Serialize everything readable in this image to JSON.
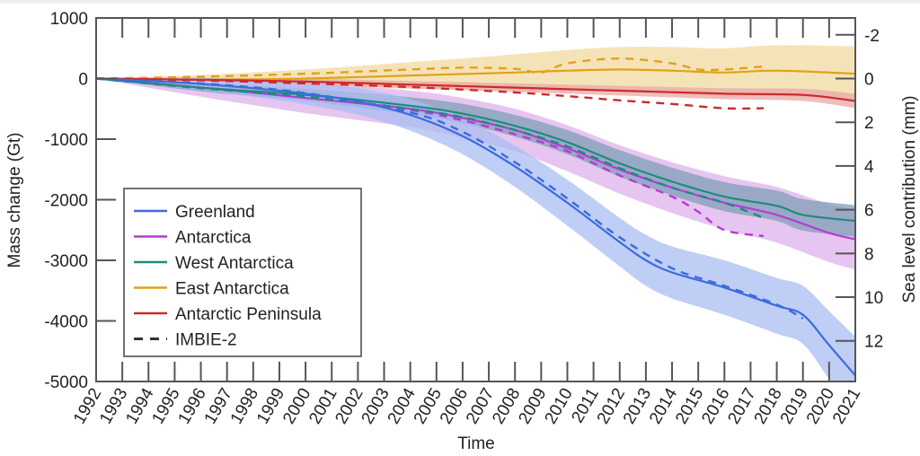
{
  "chart_data": {
    "type": "line",
    "title": "",
    "xlabel": "Time",
    "ylabel": "Mass change (Gt)",
    "y2label": "Sea level contribution (mm)",
    "xlim": [
      1992,
      2021
    ],
    "ylim": [
      -5000,
      1000
    ],
    "y2ticks": [
      "-2",
      "0",
      "2",
      "4",
      "6",
      "8",
      "10",
      "12"
    ],
    "y2tick_values": [
      -2,
      0,
      2,
      4,
      6,
      8,
      10,
      12
    ],
    "yticks": [
      "1000",
      "0",
      "-1000",
      "-2000",
      "-3000",
      "-4000",
      "-5000"
    ],
    "ytick_values": [
      1000,
      0,
      -1000,
      -2000,
      -3000,
      -4000,
      -5000
    ],
    "xticks": [
      "1992",
      "1993",
      "1994",
      "1995",
      "1996",
      "1997",
      "1998",
      "1999",
      "2000",
      "2001",
      "2002",
      "2003",
      "2004",
      "2005",
      "2006",
      "2007",
      "2008",
      "2009",
      "2010",
      "2011",
      "2012",
      "2013",
      "2014",
      "2015",
      "2016",
      "2017",
      "2018",
      "2019",
      "2020",
      "2021"
    ],
    "legend_position": "bottom-left",
    "series": [
      {
        "name": "Greenland",
        "color": "#3d6ae0",
        "band_color": "#a9bdf0",
        "x": [
          1992,
          1994,
          1996,
          1998,
          2000,
          2002,
          2004,
          2006,
          2008,
          2010,
          2012,
          2013,
          2014,
          2016,
          2018,
          2019,
          2020,
          2021
        ],
        "values": [
          0,
          -40,
          -90,
          -160,
          -250,
          -380,
          -600,
          -950,
          -1450,
          -2050,
          -2700,
          -3000,
          -3200,
          -3450,
          -3750,
          -3900,
          -4400,
          -4900
        ],
        "band": [
          0,
          60,
          100,
          140,
          180,
          220,
          260,
          300,
          340,
          380,
          400,
          420,
          430,
          450,
          460,
          480,
          560,
          640
        ],
        "imbie_x": [
          1992,
          1996,
          2000,
          2004,
          2006,
          2008,
          2010,
          2012,
          2014,
          2016,
          2018,
          2019
        ],
        "imbie_values": [
          0,
          -80,
          -240,
          -560,
          -880,
          -1380,
          -1980,
          -2620,
          -3130,
          -3420,
          -3730,
          -3960
        ]
      },
      {
        "name": "Antarctica",
        "color": "#b63ad9",
        "band_color": "#dfb2ec",
        "x": [
          1992,
          1996,
          2000,
          2004,
          2006,
          2008,
          2010,
          2012,
          2014,
          2016,
          2018,
          2020,
          2021
        ],
        "values": [
          0,
          -150,
          -320,
          -500,
          -650,
          -850,
          -1150,
          -1500,
          -1800,
          -2050,
          -2250,
          -2550,
          -2650
        ],
        "band": [
          0,
          150,
          250,
          300,
          330,
          350,
          380,
          400,
          420,
          440,
          460,
          480,
          500
        ],
        "imbie_x": [
          1992,
          1996,
          2000,
          2004,
          2006,
          2008,
          2010,
          2012,
          2014,
          2015,
          2016,
          2017.5
        ],
        "imbie_values": [
          0,
          -150,
          -300,
          -520,
          -690,
          -920,
          -1200,
          -1600,
          -1950,
          -2200,
          -2500,
          -2600
        ]
      },
      {
        "name": "West Antarctica",
        "color": "#1f8a80",
        "band_color": "#7f9fb5",
        "x": [
          1992,
          1996,
          2000,
          2004,
          2006,
          2008,
          2010,
          2012,
          2014,
          2016,
          2018,
          2019,
          2021
        ],
        "values": [
          0,
          -150,
          -270,
          -450,
          -580,
          -780,
          -1050,
          -1400,
          -1700,
          -1950,
          -2100,
          -2250,
          -2350
        ],
        "band": [
          0,
          60,
          100,
          140,
          160,
          180,
          200,
          220,
          230,
          240,
          250,
          260,
          260
        ],
        "imbie_x": [
          1992,
          1996,
          2000,
          2004,
          2006,
          2008,
          2010,
          2012,
          2014,
          2016,
          2017.5
        ],
        "imbie_values": [
          0,
          -160,
          -300,
          -500,
          -640,
          -850,
          -1120,
          -1480,
          -1800,
          -2050,
          -2300
        ]
      },
      {
        "name": "East Antarctica",
        "color": "#e0a21a",
        "band_color": "#f2d9a0",
        "x": [
          1992,
          1996,
          2000,
          2004,
          2008,
          2010,
          2012,
          2014,
          2016,
          2018,
          2021
        ],
        "values": [
          0,
          -20,
          0,
          50,
          100,
          130,
          150,
          130,
          100,
          130,
          80
        ],
        "band": [
          0,
          80,
          150,
          220,
          300,
          340,
          370,
          390,
          400,
          420,
          450
        ],
        "imbie_x": [
          1992,
          1996,
          2000,
          2004,
          2006,
          2008,
          2009,
          2010,
          2012,
          2014,
          2015,
          2016,
          2017.5
        ],
        "imbie_values": [
          0,
          30,
          80,
          150,
          180,
          160,
          100,
          250,
          330,
          250,
          150,
          150,
          200
        ]
      },
      {
        "name": "Antarctic Peninsula",
        "color": "#cc2b2b",
        "band_color": "#e8a8a8",
        "x": [
          1992,
          1996,
          2000,
          2004,
          2008,
          2012,
          2016,
          2019,
          2021
        ],
        "values": [
          0,
          -20,
          -50,
          -100,
          -150,
          -200,
          -250,
          -270,
          -370
        ],
        "band": [
          0,
          30,
          50,
          60,
          70,
          80,
          90,
          100,
          120
        ],
        "imbie_x": [
          1992,
          1996,
          2000,
          2004,
          2008,
          2010,
          2012,
          2014,
          2016,
          2017.5
        ],
        "imbie_values": [
          0,
          -30,
          -80,
          -140,
          -230,
          -290,
          -360,
          -420,
          -490,
          -490
        ]
      }
    ],
    "legend": [
      "Greenland",
      "Antarctica",
      "West Antarctica",
      "East Antarctica",
      "Antarctic Peninsula",
      "IMBIE-2"
    ]
  }
}
